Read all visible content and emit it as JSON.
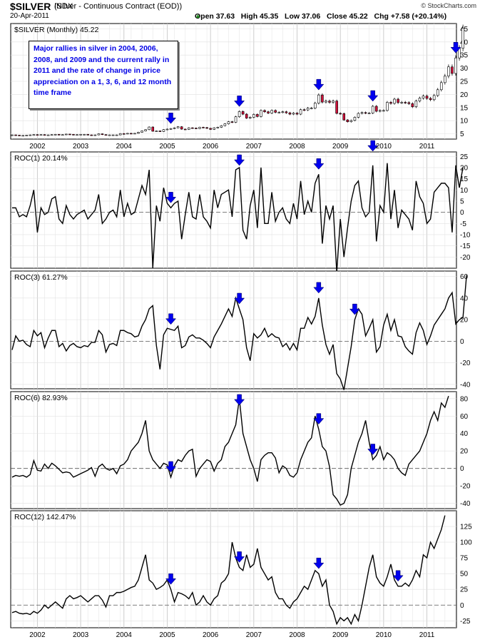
{
  "header": {
    "symbol": "$SILVER",
    "description": "(Silver - Continuous Contract (EOD))",
    "exchange": "INDX",
    "date": "20-Apr-2011",
    "ohlc_line": "Open 37.63   High 45.35   Low 37.06   Close 45.22   Chg +7.58 (+20.14%)",
    "copyright": "© StockCharts.com"
  },
  "colors": {
    "arrow": "#0000ee",
    "up_candle": "#ffffff",
    "down_candle": "#d0103a",
    "line": "#000000",
    "grid": "#dddddd"
  },
  "annotation": "Major rallies in silver in 2004, 2006, 2008, and 2009 and the current rally in 2011 and the rate of change in price appreciation on a 1, 3, 6, and 12 month time frame",
  "chart_data": [
    {
      "type": "candlestick",
      "title": "$SILVER (Monthly) 45.22",
      "x_labels": [
        "2002",
        "2003",
        "2004",
        "2005",
        "2006",
        "2007",
        "2008",
        "2009",
        "2010",
        "2011"
      ],
      "ylim": [
        3,
        47
      ],
      "y_ticks": [
        5,
        10,
        15,
        20,
        25,
        30,
        35,
        40,
        45
      ],
      "close": [
        4.6,
        4.5,
        4.4,
        4.4,
        4.5,
        4.6,
        4.7,
        4.6,
        4.7,
        4.6,
        4.6,
        4.7,
        4.8,
        4.7,
        4.7,
        4.9,
        4.8,
        4.6,
        4.7,
        4.8,
        4.8,
        4.6,
        4.5,
        4.6,
        5.0,
        4.7,
        4.5,
        4.6,
        4.6,
        4.6,
        5.1,
        5.0,
        5.2,
        5.1,
        5.2,
        5.6,
        6.1,
        6.6,
        7.6,
        6.0,
        6.1,
        5.9,
        6.6,
        6.8,
        7.0,
        7.3,
        7.7,
        6.8,
        6.7,
        7.3,
        7.2,
        7.0,
        7.5,
        7.4,
        7.1,
        6.7,
        7.3,
        7.5,
        8.1,
        8.8,
        9.6,
        9.4,
        11.5,
        13.5,
        12.5,
        11.0,
        11.3,
        12.4,
        11.6,
        13.9,
        13.4,
        12.9,
        13.9,
        13.2,
        13.2,
        13.4,
        13.0,
        12.5,
        12.9,
        12.5,
        14.2,
        14.1,
        14.8,
        14.8,
        16.7,
        19.8,
        17.1,
        17.5,
        17.0,
        17.5,
        12.8,
        12.7,
        10.3,
        9.6,
        10.1,
        11.3,
        12.8,
        13.1,
        12.9,
        12.9,
        15.5,
        13.6,
        13.9,
        13.9,
        17.0,
        16.6,
        18.2,
        16.9,
        17.0,
        16.9,
        16.5,
        15.3,
        17.5,
        18.6,
        19.4,
        18.5,
        18.0,
        19.6,
        21.8,
        24.5,
        27.0,
        30.5,
        28.0,
        33.9,
        37.6,
        45.22
      ]
    },
    {
      "type": "line",
      "title": "ROC(1) 20.14%",
      "ylim": [
        -25,
        27
      ],
      "y_ticks": [
        -20,
        -15,
        -10,
        -5,
        0,
        5,
        10,
        15,
        20,
        25
      ],
      "values": [
        2,
        2,
        -2,
        -1,
        -2,
        3,
        10,
        -9,
        2,
        -1,
        0,
        6,
        7,
        -3,
        -5,
        3,
        -1,
        -3,
        -1,
        0,
        1,
        -3,
        -1,
        1,
        8,
        -5,
        -3,
        0,
        1,
        -2,
        10,
        -2,
        4,
        -1,
        0,
        6,
        12,
        8,
        19,
        -25,
        3,
        -4,
        11,
        4,
        2,
        4,
        5,
        -12,
        -1,
        9,
        -2,
        -3,
        8,
        -2,
        -4,
        -7,
        10,
        2,
        8,
        9,
        10,
        -2,
        19,
        20,
        -8,
        -12,
        3,
        10,
        -7,
        20,
        -5,
        -5,
        9,
        -4,
        0,
        2,
        -3,
        -5,
        4,
        -3,
        14,
        -1,
        5,
        0,
        13,
        17,
        -14,
        3,
        -3,
        3,
        -27,
        -3,
        -20,
        -7,
        5,
        12,
        14,
        2,
        -2,
        0,
        21,
        -13,
        3,
        0,
        22,
        -3,
        10,
        -7,
        1,
        -1,
        -3,
        -8,
        14,
        7,
        4,
        -5,
        -3,
        9,
        11,
        13,
        13,
        11,
        -9,
        21,
        11,
        20.14
      ]
    },
    {
      "type": "line",
      "title": "ROC(3) 61.27%",
      "ylim": [
        -44,
        65
      ],
      "y_ticks": [
        -40,
        -20,
        0,
        20,
        40,
        60
      ],
      "values": [
        -8,
        5,
        0,
        1,
        -3,
        -5,
        10,
        5,
        8,
        -6,
        3,
        10,
        10,
        -5,
        -2,
        -9,
        -4,
        -2,
        -5,
        -6,
        -4,
        -5,
        -1,
        -1,
        10,
        6,
        -10,
        -3,
        -2,
        -4,
        10,
        10,
        8,
        7,
        4,
        5,
        14,
        20,
        30,
        33,
        -4,
        -26,
        6,
        12,
        11,
        10,
        14,
        -6,
        -4,
        4,
        6,
        3,
        3,
        1,
        -2,
        -6,
        4,
        10,
        16,
        23,
        30,
        23,
        40,
        30,
        20,
        -6,
        -18,
        7,
        3,
        6,
        12,
        4,
        7,
        4,
        3,
        -5,
        -2,
        -8,
        -2,
        -8,
        12,
        12,
        22,
        16,
        23,
        40,
        15,
        -3,
        -12,
        -3,
        -30,
        -35,
        -45,
        -25,
        -5,
        20,
        30,
        25,
        5,
        12,
        20,
        -10,
        -5,
        15,
        25,
        10,
        20,
        5,
        4,
        -5,
        -9,
        -12,
        8,
        17,
        10,
        -3,
        5,
        15,
        20,
        25,
        30,
        40,
        45,
        16,
        20,
        22,
        61.27
      ]
    },
    {
      "type": "line",
      "title": "ROC(6) 82.93%",
      "ylim": [
        -46,
        88
      ],
      "y_ticks": [
        -40,
        -20,
        0,
        20,
        40,
        60,
        80
      ],
      "values": [
        -10,
        -8,
        -9,
        -8,
        -10,
        -7,
        9,
        -2,
        -3,
        5,
        0,
        6,
        3,
        -1,
        -5,
        -4,
        -5,
        -10,
        -8,
        -6,
        -4,
        -2,
        1,
        -9,
        2,
        5,
        0,
        -2,
        0,
        -6,
        3,
        5,
        10,
        20,
        25,
        30,
        40,
        55,
        20,
        10,
        5,
        0,
        6,
        4,
        -10,
        3,
        10,
        8,
        15,
        20,
        22,
        -9,
        0,
        5,
        10,
        8,
        -3,
        6,
        10,
        25,
        30,
        40,
        50,
        80,
        40,
        25,
        10,
        0,
        -15,
        10,
        15,
        18,
        18,
        12,
        -5,
        3,
        0,
        -8,
        -10,
        -5,
        10,
        20,
        30,
        35,
        60,
        45,
        25,
        20,
        2,
        -30,
        -35,
        -42,
        -40,
        -30,
        0,
        15,
        30,
        40,
        55,
        30,
        10,
        15,
        25,
        10,
        18,
        15,
        10,
        0,
        -5,
        -8,
        5,
        10,
        15,
        20,
        30,
        40,
        55,
        65,
        55,
        75,
        70,
        82.93
      ]
    },
    {
      "type": "line",
      "title": "ROC(12) 142.47%",
      "ylim": [
        -36,
        150
      ],
      "y_ticks": [
        -25,
        0,
        25,
        50,
        75,
        100,
        125
      ],
      "values": [
        -12,
        -10,
        -13,
        -14,
        -13,
        -15,
        -10,
        -13,
        -8,
        0,
        -5,
        0,
        5,
        0,
        -5,
        10,
        15,
        10,
        12,
        15,
        10,
        5,
        10,
        15,
        15,
        8,
        -3,
        15,
        15,
        20,
        20,
        22,
        25,
        28,
        30,
        40,
        60,
        80,
        40,
        35,
        25,
        28,
        32,
        40,
        25,
        5,
        20,
        18,
        15,
        10,
        20,
        0,
        5,
        15,
        5,
        0,
        10,
        15,
        35,
        40,
        50,
        100,
        75,
        60,
        55,
        80,
        60,
        65,
        90,
        60,
        50,
        40,
        45,
        20,
        10,
        10,
        0,
        -5,
        5,
        10,
        20,
        30,
        25,
        40,
        55,
        50,
        30,
        40,
        0,
        -10,
        -30,
        -20,
        -25,
        -20,
        -30,
        -15,
        -25,
        0,
        30,
        60,
        80,
        45,
        35,
        30,
        45,
        65,
        40,
        30,
        30,
        35,
        30,
        40,
        55,
        45,
        80,
        75,
        100,
        90,
        105,
        120,
        142.47
      ]
    }
  ]
}
